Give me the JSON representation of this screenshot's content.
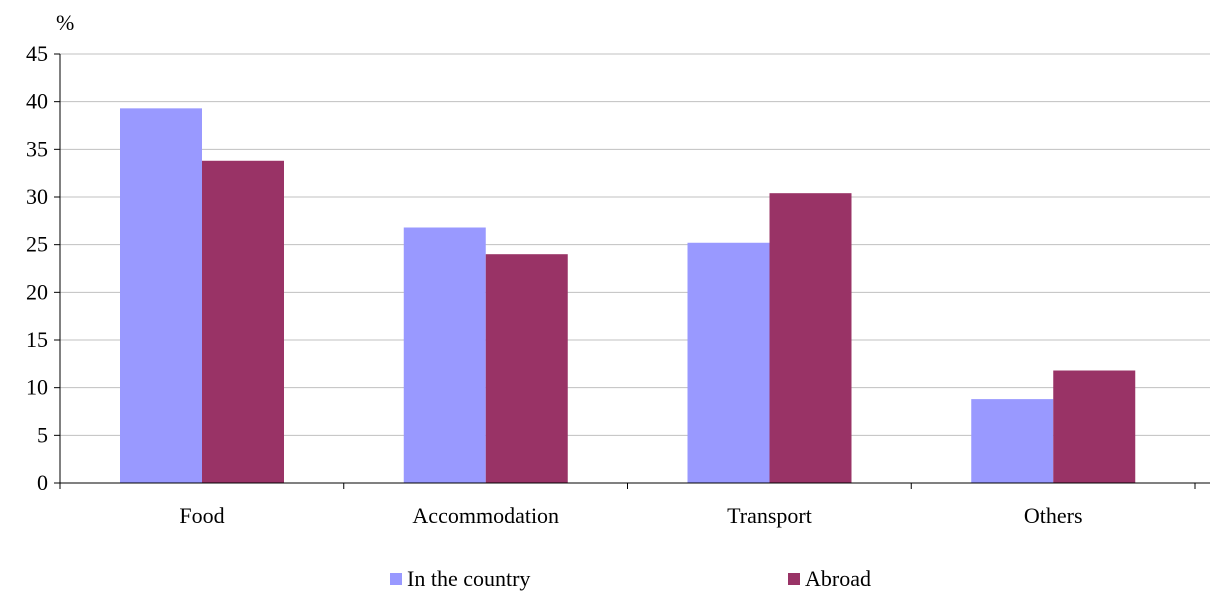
{
  "chart_data": {
    "type": "bar",
    "unit_label": "%",
    "categories": [
      "Food",
      "Accommodation",
      "Transport",
      "Others"
    ],
    "series": [
      {
        "name": "In the country",
        "color": "#9999ff",
        "values": [
          39.3,
          26.8,
          25.2,
          8.8
        ]
      },
      {
        "name": "Abroad",
        "color": "#993366",
        "values": [
          33.8,
          24.0,
          30.4,
          11.8
        ]
      }
    ],
    "ylim": [
      0,
      45
    ],
    "yticks": [
      0,
      5,
      10,
      15,
      20,
      25,
      30,
      35,
      40,
      45
    ],
    "grid": true,
    "legend_position": "bottom"
  }
}
